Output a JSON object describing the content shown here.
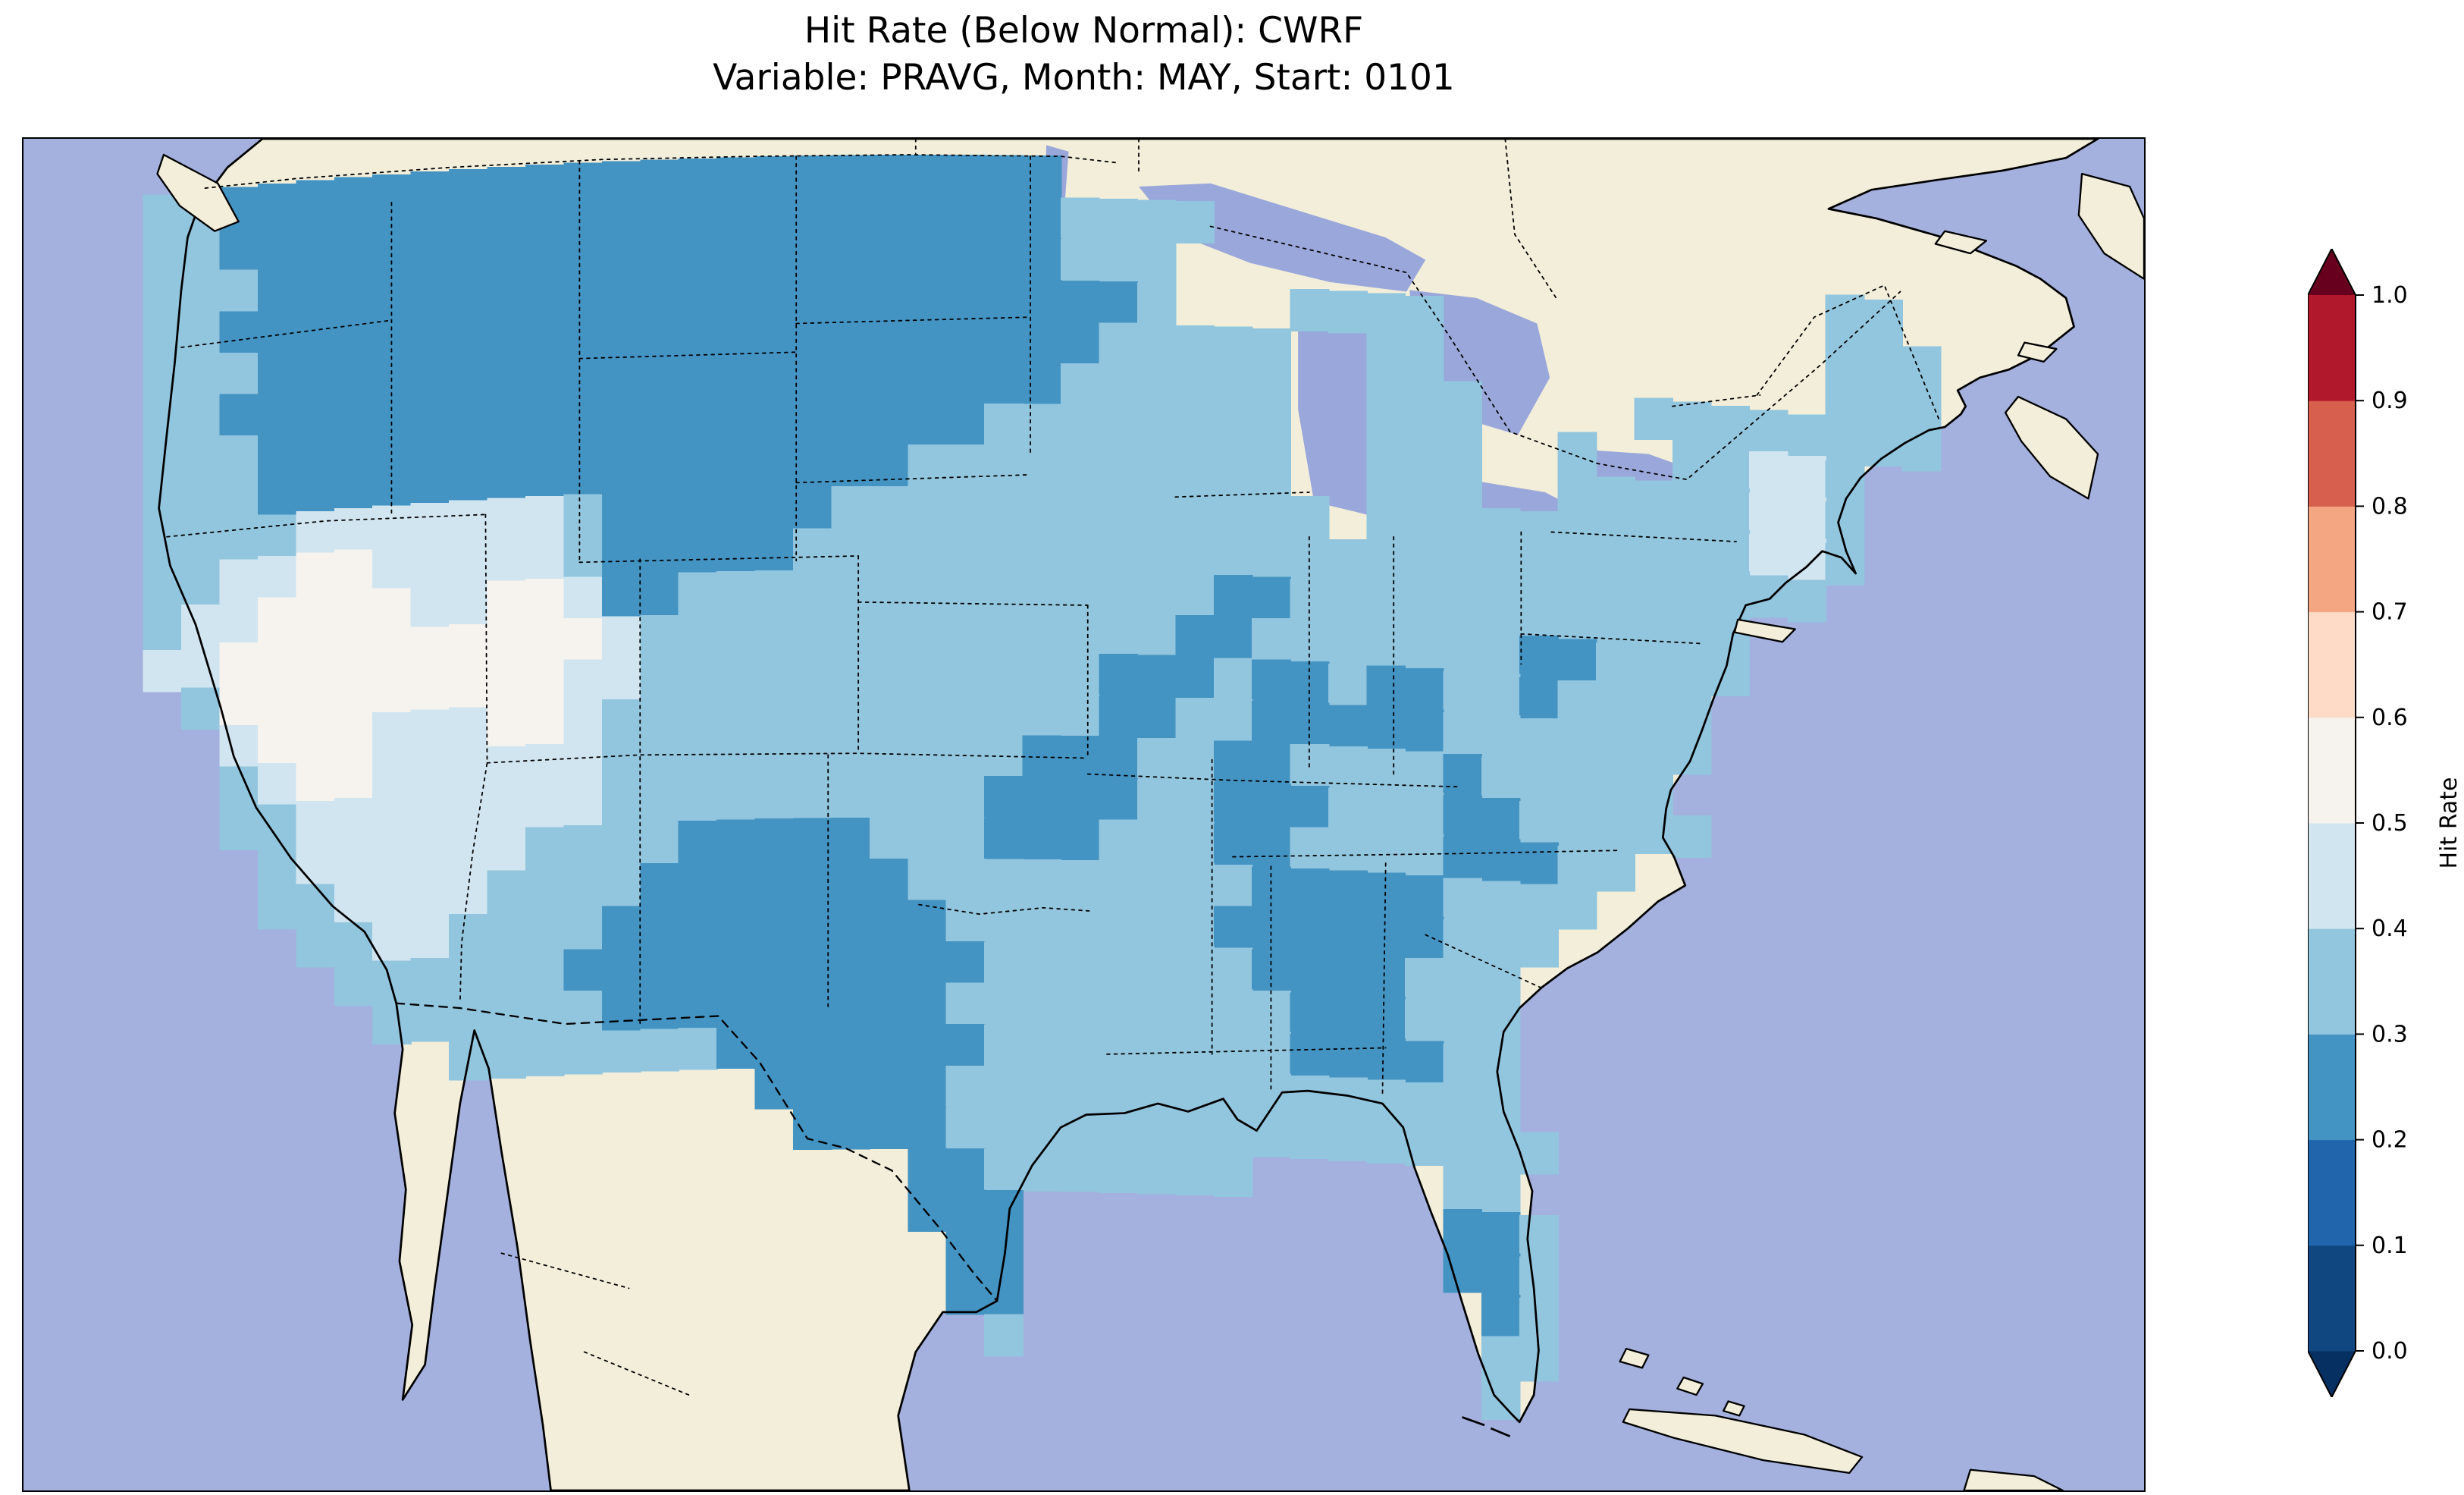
{
  "title": {
    "line1": "Hit Rate (Below Normal): CWRF",
    "line2": "Variable: PRAVG, Month: MAY, Start: 0101"
  },
  "colorbar": {
    "label": "Hit Rate",
    "tick_labels": [
      "0.0",
      "0.1",
      "0.2",
      "0.3",
      "0.4",
      "0.5",
      "0.6",
      "0.7",
      "0.8",
      "0.9",
      "1.0"
    ],
    "segment_colors": [
      "#114781",
      "#2166ac",
      "#4393c3",
      "#92c5de",
      "#d1e5f0",
      "#f6f3ef",
      "#fddbc7",
      "#f4a582",
      "#d6604d",
      "#b2182b"
    ],
    "under_color": "#053061",
    "over_color": "#67001f"
  },
  "colors": {
    "ocean": "#a4b0de",
    "land": "#f2eeda",
    "lake": "#9aa7da",
    "coastline": "#000000",
    "background": "#ffffff"
  },
  "chart_data": {
    "type": "heatmap",
    "title": "Hit Rate (Below Normal): CWRF",
    "subtitle": "Variable: PRAVG, Month: MAY, Start: 0101",
    "model": "CWRF",
    "metric": "Hit Rate",
    "category": "Below Normal",
    "variable": "PRAVG",
    "month": "MAY",
    "start": "0101",
    "region": "Contiguous United States with surrounding Canada, Mexico, Atlantic and Pacific",
    "colorbar_label": "Hit Rate",
    "colorbar_ticks": [
      0.0,
      0.1,
      0.2,
      0.3,
      0.4,
      0.5,
      0.6,
      0.7,
      0.8,
      0.9,
      1.0
    ],
    "colorbar_extend": "both",
    "legend_position": "right",
    "value_summary": "Most CONUS grid cells fall between 0.2 and 0.6; darker blue (0.2-0.3) over the northern Rockies, Dakotas, central Texas, lower Midwest, Southeast interior and Florida; near-white (0.5-0.6) over the Great Basin and Four Corners.",
    "bin_colors": {
      "2": "#4393c3",
      "3": "#92c5de",
      "4": "#d1e5f0",
      "5": "#f6f3ef"
    },
    "bin_ranges": {
      "2": [
        0.2,
        0.3
      ],
      "3": [
        0.3,
        0.4
      ],
      "4": [
        0.4,
        0.5
      ],
      "5": [
        0.5,
        0.6
      ]
    },
    "grid": {
      "ncols": 48,
      "nrows": 30,
      "lon_west": -125,
      "lon_east": -66,
      "lat_north": 49,
      "lat_south": 24,
      "cells": [
        "332222222222222222222222........................",
        "3322222222222222222222223333....................",
        "333222222222222222222222333.................33..",
        "332222222222222222222222223...3333..........333.",
        "333222222222222222222222233333..33..........333.",
        "332222222222222222222222333333..333....33333333.",
        "333222222222222222222233333333..333..3..33443...",
        "333222222222222222223333333333..333..33333443...",
        "3333444444432222223333333333333.3333333333443...",
        "33445544444322222333333333333333333333333333....",
        "344555544554223333333333333322333333333333......",
        "445555555555433333333333333223333333223333......",
        ".3555555555443333333333332223223223323333.......",
        "..455544455433333333333332233222223333333.......",
        "..34554444443333333333322233223333233333........",
        "..334444444433333333332222332223332233333.......",
        "...344444433332222233322233322333322233.........",
        "...33444433332222222333333333222223333..........",
        "....334433332222222223333333222222333...........",
        ".....3333332222222222233333332222333............",
        "......333333222222222333333333222333............",
        "........3333333222222233333333222233............",
        "................22222333333333333333............",
        ".................22223333333333333333............",
        "....................223333333.....33............",
        "....................222...........223...........",
        ".....................22...........223...........",
        ".....................22............23...........",
        "......................3............33...........",
        "...................................3............"
      ]
    }
  }
}
